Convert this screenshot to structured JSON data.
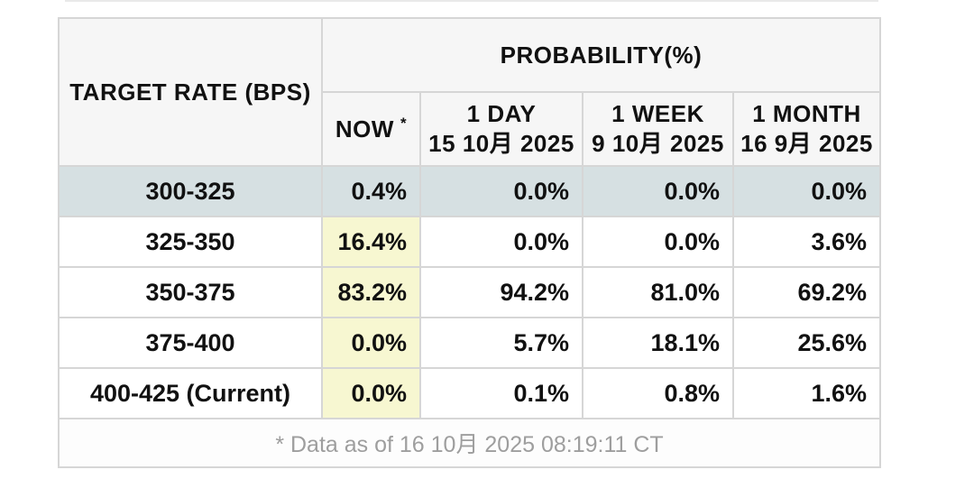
{
  "table": {
    "target_rate_header": "TARGET RATE (BPS)",
    "probability_header": "PROBABILITY(%)",
    "now_label": "NOW",
    "now_asterisk": "*",
    "columns": [
      {
        "label": "1 DAY",
        "date": "15 10月 2025"
      },
      {
        "label": "1 WEEK",
        "date": "9 10月 2025"
      },
      {
        "label": "1 MONTH",
        "date": "16 9月 2025"
      }
    ],
    "rows": [
      {
        "target_rate": "300-325",
        "now": "0.4%",
        "one_day": "0.0%",
        "one_week": "0.0%",
        "one_month": "0.0%"
      },
      {
        "target_rate": "325-350",
        "now": "16.4%",
        "one_day": "0.0%",
        "one_week": "0.0%",
        "one_month": "3.6%"
      },
      {
        "target_rate": "350-375",
        "now": "83.2%",
        "one_day": "94.2%",
        "one_week": "81.0%",
        "one_month": "69.2%"
      },
      {
        "target_rate": "375-400",
        "now": "0.0%",
        "one_day": "5.7%",
        "one_week": "18.1%",
        "one_month": "25.6%"
      },
      {
        "target_rate": "400-425 (Current)",
        "now": "0.0%",
        "one_day": "0.1%",
        "one_week": "0.8%",
        "one_month": "1.6%"
      }
    ],
    "footnote": "* Data as of 16 10月 2025 08:19:11 CT"
  },
  "colors": {
    "highlight_row_bg": "#d6e0e2",
    "now_column_bg": "#f7f7d1",
    "header_bg": "#f6f6f6",
    "border": "#d6d6d6",
    "footnote_text": "#9e9e9e"
  },
  "chart_data": {
    "type": "table",
    "title": "PROBABILITY(%)",
    "columns": [
      "TARGET RATE (BPS)",
      "NOW *",
      "1 DAY 15 10月 2025",
      "1 WEEK 9 10月 2025",
      "1 MONTH 16 9月 2025"
    ],
    "rows": [
      [
        "300-325",
        0.4,
        0.0,
        0.0,
        0.0
      ],
      [
        "325-350",
        16.4,
        0.0,
        0.0,
        3.6
      ],
      [
        "350-375",
        83.2,
        94.2,
        81.0,
        69.2
      ],
      [
        "375-400",
        0.0,
        5.7,
        18.1,
        25.6
      ],
      [
        "400-425 (Current)",
        0.0,
        0.1,
        0.8,
        1.6
      ]
    ],
    "footnote": "* Data as of 16 10月 2025 08:19:11 CT"
  }
}
